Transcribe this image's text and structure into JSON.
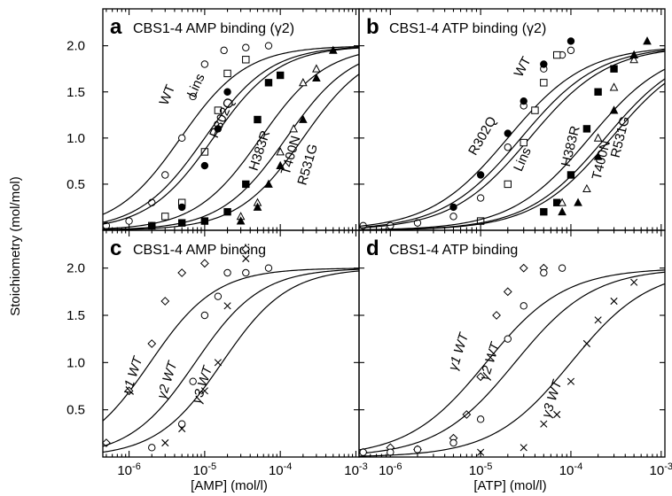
{
  "figure": {
    "y_axis_label": "Stoichiometry (mol/mol)",
    "colors": {
      "ink": "#000000",
      "background": "#ffffff"
    }
  },
  "chart_data": [
    {
      "type": "scatter",
      "panel_letter": "a",
      "title": "CBS1-4 AMP binding (γ2)",
      "xlabel": "",
      "ylabel": "Stoichiometry (mol/mol)",
      "x_scale": "log",
      "xlim": [
        4.5e-07,
        0.0011
      ],
      "ylim": [
        0,
        2.4
      ],
      "y_ticks": [
        "0.5",
        "1.0",
        "1.5",
        "2.0"
      ],
      "grid": false,
      "series": [
        {
          "name": "WT",
          "marker": "circle-open",
          "kd": 4.8e-06,
          "x": [
            5e-07,
            1e-06,
            2e-06,
            3e-06,
            5e-06,
            7e-06,
            1e-05,
            1.8e-05,
            3.5e-05,
            7e-05
          ],
          "y": [
            0.05,
            0.1,
            0.3,
            0.6,
            1.0,
            1.45,
            1.8,
            1.95,
            1.98,
            2.0
          ]
        },
        {
          "name": "Lins",
          "marker": "square-open",
          "kd": 1e-05,
          "x": [
            2e-06,
            3e-06,
            5e-06,
            1e-05,
            1.5e-05,
            2e-05,
            3.5e-05
          ],
          "y": [
            0.05,
            0.15,
            0.3,
            0.85,
            1.3,
            1.7,
            1.85
          ]
        },
        {
          "name": "R302Q",
          "marker": "circle-filled",
          "kd": 1.3e-05,
          "x": [
            2e-06,
            5e-06,
            1e-05,
            1.5e-05,
            2e-05
          ],
          "y": [
            0.05,
            0.25,
            0.7,
            1.1,
            1.5
          ]
        },
        {
          "name": "H383R",
          "marker": "square-filled",
          "kd": 5.5e-05,
          "x": [
            5e-06,
            1e-05,
            2e-05,
            3.5e-05,
            5e-05,
            7e-05,
            0.0001
          ],
          "y": [
            0.08,
            0.1,
            0.2,
            0.5,
            1.2,
            1.6,
            1.68
          ]
        },
        {
          "name": "T400N",
          "marker": "triangle-open",
          "kd": 0.00012,
          "x": [
            3e-05,
            5e-05,
            0.0001,
            0.00015,
            0.0002,
            0.0003
          ],
          "y": [
            0.15,
            0.3,
            0.85,
            1.1,
            1.6,
            1.75
          ]
        },
        {
          "name": "R531G",
          "marker": "triangle-filled",
          "kd": 0.0002,
          "x": [
            3e-05,
            5e-05,
            7e-05,
            0.0001,
            0.0002,
            0.0003,
            0.0005
          ],
          "y": [
            0.1,
            0.25,
            0.5,
            0.7,
            1.2,
            1.65,
            1.95
          ]
        }
      ]
    },
    {
      "type": "scatter",
      "panel_letter": "b",
      "title": "CBS1-4 ATP binding (γ2)",
      "xlabel": "",
      "ylabel": "",
      "x_scale": "log",
      "xlim": [
        4.5e-07,
        0.0011
      ],
      "ylim": [
        0,
        2.4
      ],
      "grid": false,
      "series": [
        {
          "name": "WT",
          "marker": "circle-open",
          "kd": 2.8e-05,
          "x": [
            5e-07,
            1e-06,
            2e-06,
            5e-06,
            1e-05,
            2e-05,
            3e-05,
            5e-05,
            8e-05,
            0.0001
          ],
          "y": [
            0.05,
            0.05,
            0.08,
            0.15,
            0.35,
            0.9,
            1.35,
            1.75,
            1.9,
            1.95
          ]
        },
        {
          "name": "R302Q",
          "marker": "circle-filled",
          "kd": 2e-05,
          "x": [
            5e-06,
            1e-05,
            2e-05,
            3e-05,
            5e-05,
            0.0001
          ],
          "y": [
            0.25,
            0.6,
            1.05,
            1.4,
            1.8,
            2.05
          ]
        },
        {
          "name": "Lins",
          "marker": "square-open",
          "kd": 3.5e-05,
          "x": [
            1e-05,
            2e-05,
            3e-05,
            4e-05,
            5e-05,
            7e-05
          ],
          "y": [
            0.1,
            0.5,
            0.95,
            1.3,
            1.6,
            1.9
          ]
        },
        {
          "name": "H383R",
          "marker": "square-filled",
          "kd": 0.00016,
          "x": [
            5e-05,
            7e-05,
            0.0001,
            0.00015,
            0.0002,
            0.0003
          ],
          "y": [
            0.2,
            0.3,
            0.6,
            1.1,
            1.5,
            1.75
          ]
        },
        {
          "name": "T400N",
          "marker": "triangle-open",
          "kd": 0.00024,
          "x": [
            8e-05,
            0.00015,
            0.0002,
            0.0003,
            0.0005
          ],
          "y": [
            0.3,
            0.45,
            1.0,
            1.55,
            1.85
          ]
        },
        {
          "name": "R531G",
          "marker": "triangle-filled",
          "kd": 0.00028,
          "x": [
            8e-05,
            0.00012,
            0.0002,
            0.0003,
            0.0005,
            0.0007
          ],
          "y": [
            0.2,
            0.3,
            0.8,
            1.3,
            1.9,
            2.05
          ]
        }
      ]
    },
    {
      "type": "scatter",
      "panel_letter": "c",
      "title": "CBS1-4 AMP binding",
      "xlabel": "[AMP] (mol/l)",
      "ylabel": "",
      "x_scale": "log",
      "xlim": [
        4.5e-07,
        0.0011
      ],
      "ylim": [
        0,
        2.4
      ],
      "x_ticks": [
        {
          "exp": "-6",
          "value": 1e-06
        },
        {
          "exp": "-5",
          "value": 1e-05
        },
        {
          "exp": "-4",
          "value": 0.0001
        },
        {
          "exp": "-3",
          "value": 0.001
        }
      ],
      "y_ticks": [
        "0.5",
        "1.0",
        "1.5",
        "2.0"
      ],
      "grid": false,
      "series": [
        {
          "name": "γ1 WT",
          "marker": "diamond-open",
          "kd": 1.9e-06,
          "x": [
            5e-07,
            1e-06,
            2e-06,
            3e-06,
            5e-06,
            1e-05,
            3.5e-05
          ],
          "y": [
            0.15,
            0.7,
            1.2,
            1.65,
            1.95,
            2.05,
            2.2
          ]
        },
        {
          "name": "γ2 WT",
          "marker": "circle-open",
          "kd": 7.5e-06,
          "x": [
            2e-06,
            5e-06,
            7e-06,
            1e-05,
            1.5e-05,
            2e-05,
            3.5e-05,
            7e-05
          ],
          "y": [
            0.1,
            0.35,
            0.8,
            1.5,
            1.7,
            1.95,
            1.95,
            2.0
          ]
        },
        {
          "name": "γ3 WT",
          "marker": "cross",
          "kd": 1.7e-05,
          "x": [
            3e-06,
            5e-06,
            1e-05,
            1.5e-05,
            2e-05,
            3.5e-05
          ],
          "y": [
            0.15,
            0.3,
            0.7,
            1.0,
            1.6,
            2.1
          ]
        }
      ]
    },
    {
      "type": "scatter",
      "panel_letter": "d",
      "title": "CBS1-4 ATP binding",
      "xlabel": "[ATP] (mol/l)",
      "ylabel": "",
      "x_scale": "log",
      "xlim": [
        4.5e-07,
        0.0011
      ],
      "ylim": [
        0,
        2.4
      ],
      "x_ticks": [
        {
          "exp": "-6",
          "value": 1e-06
        },
        {
          "exp": "-5",
          "value": 1e-05
        },
        {
          "exp": "-4",
          "value": 0.0001
        },
        {
          "exp": "-3",
          "value": 0.001
        }
      ],
      "grid": false,
      "series": [
        {
          "name": "γ1 WT",
          "marker": "diamond-open",
          "kd": 1.15e-05,
          "x": [
            5e-07,
            1e-06,
            2e-06,
            5e-06,
            7e-06,
            1e-05,
            1.5e-05,
            2e-05,
            3e-05,
            5e-05
          ],
          "y": [
            0.05,
            0.1,
            0.08,
            0.2,
            0.45,
            0.85,
            1.5,
            1.75,
            2.0,
            2.0
          ]
        },
        {
          "name": "γ2 WT",
          "marker": "circle-open",
          "kd": 2.4e-05,
          "x": [
            5e-07,
            1e-06,
            2e-06,
            5e-06,
            1e-05,
            2e-05,
            3e-05,
            5e-05,
            8e-05
          ],
          "y": [
            0.05,
            0.05,
            0.08,
            0.15,
            0.4,
            1.25,
            1.6,
            1.95,
            2.0
          ]
        },
        {
          "name": "γ3 WT",
          "marker": "cross",
          "kd": 0.0001,
          "x": [
            1e-05,
            3e-05,
            5e-05,
            7e-05,
            0.0001,
            0.00015,
            0.0002,
            0.0003,
            0.0005
          ],
          "y": [
            0.05,
            0.1,
            0.35,
            0.45,
            0.8,
            1.2,
            1.45,
            1.65,
            1.85
          ]
        }
      ]
    }
  ]
}
